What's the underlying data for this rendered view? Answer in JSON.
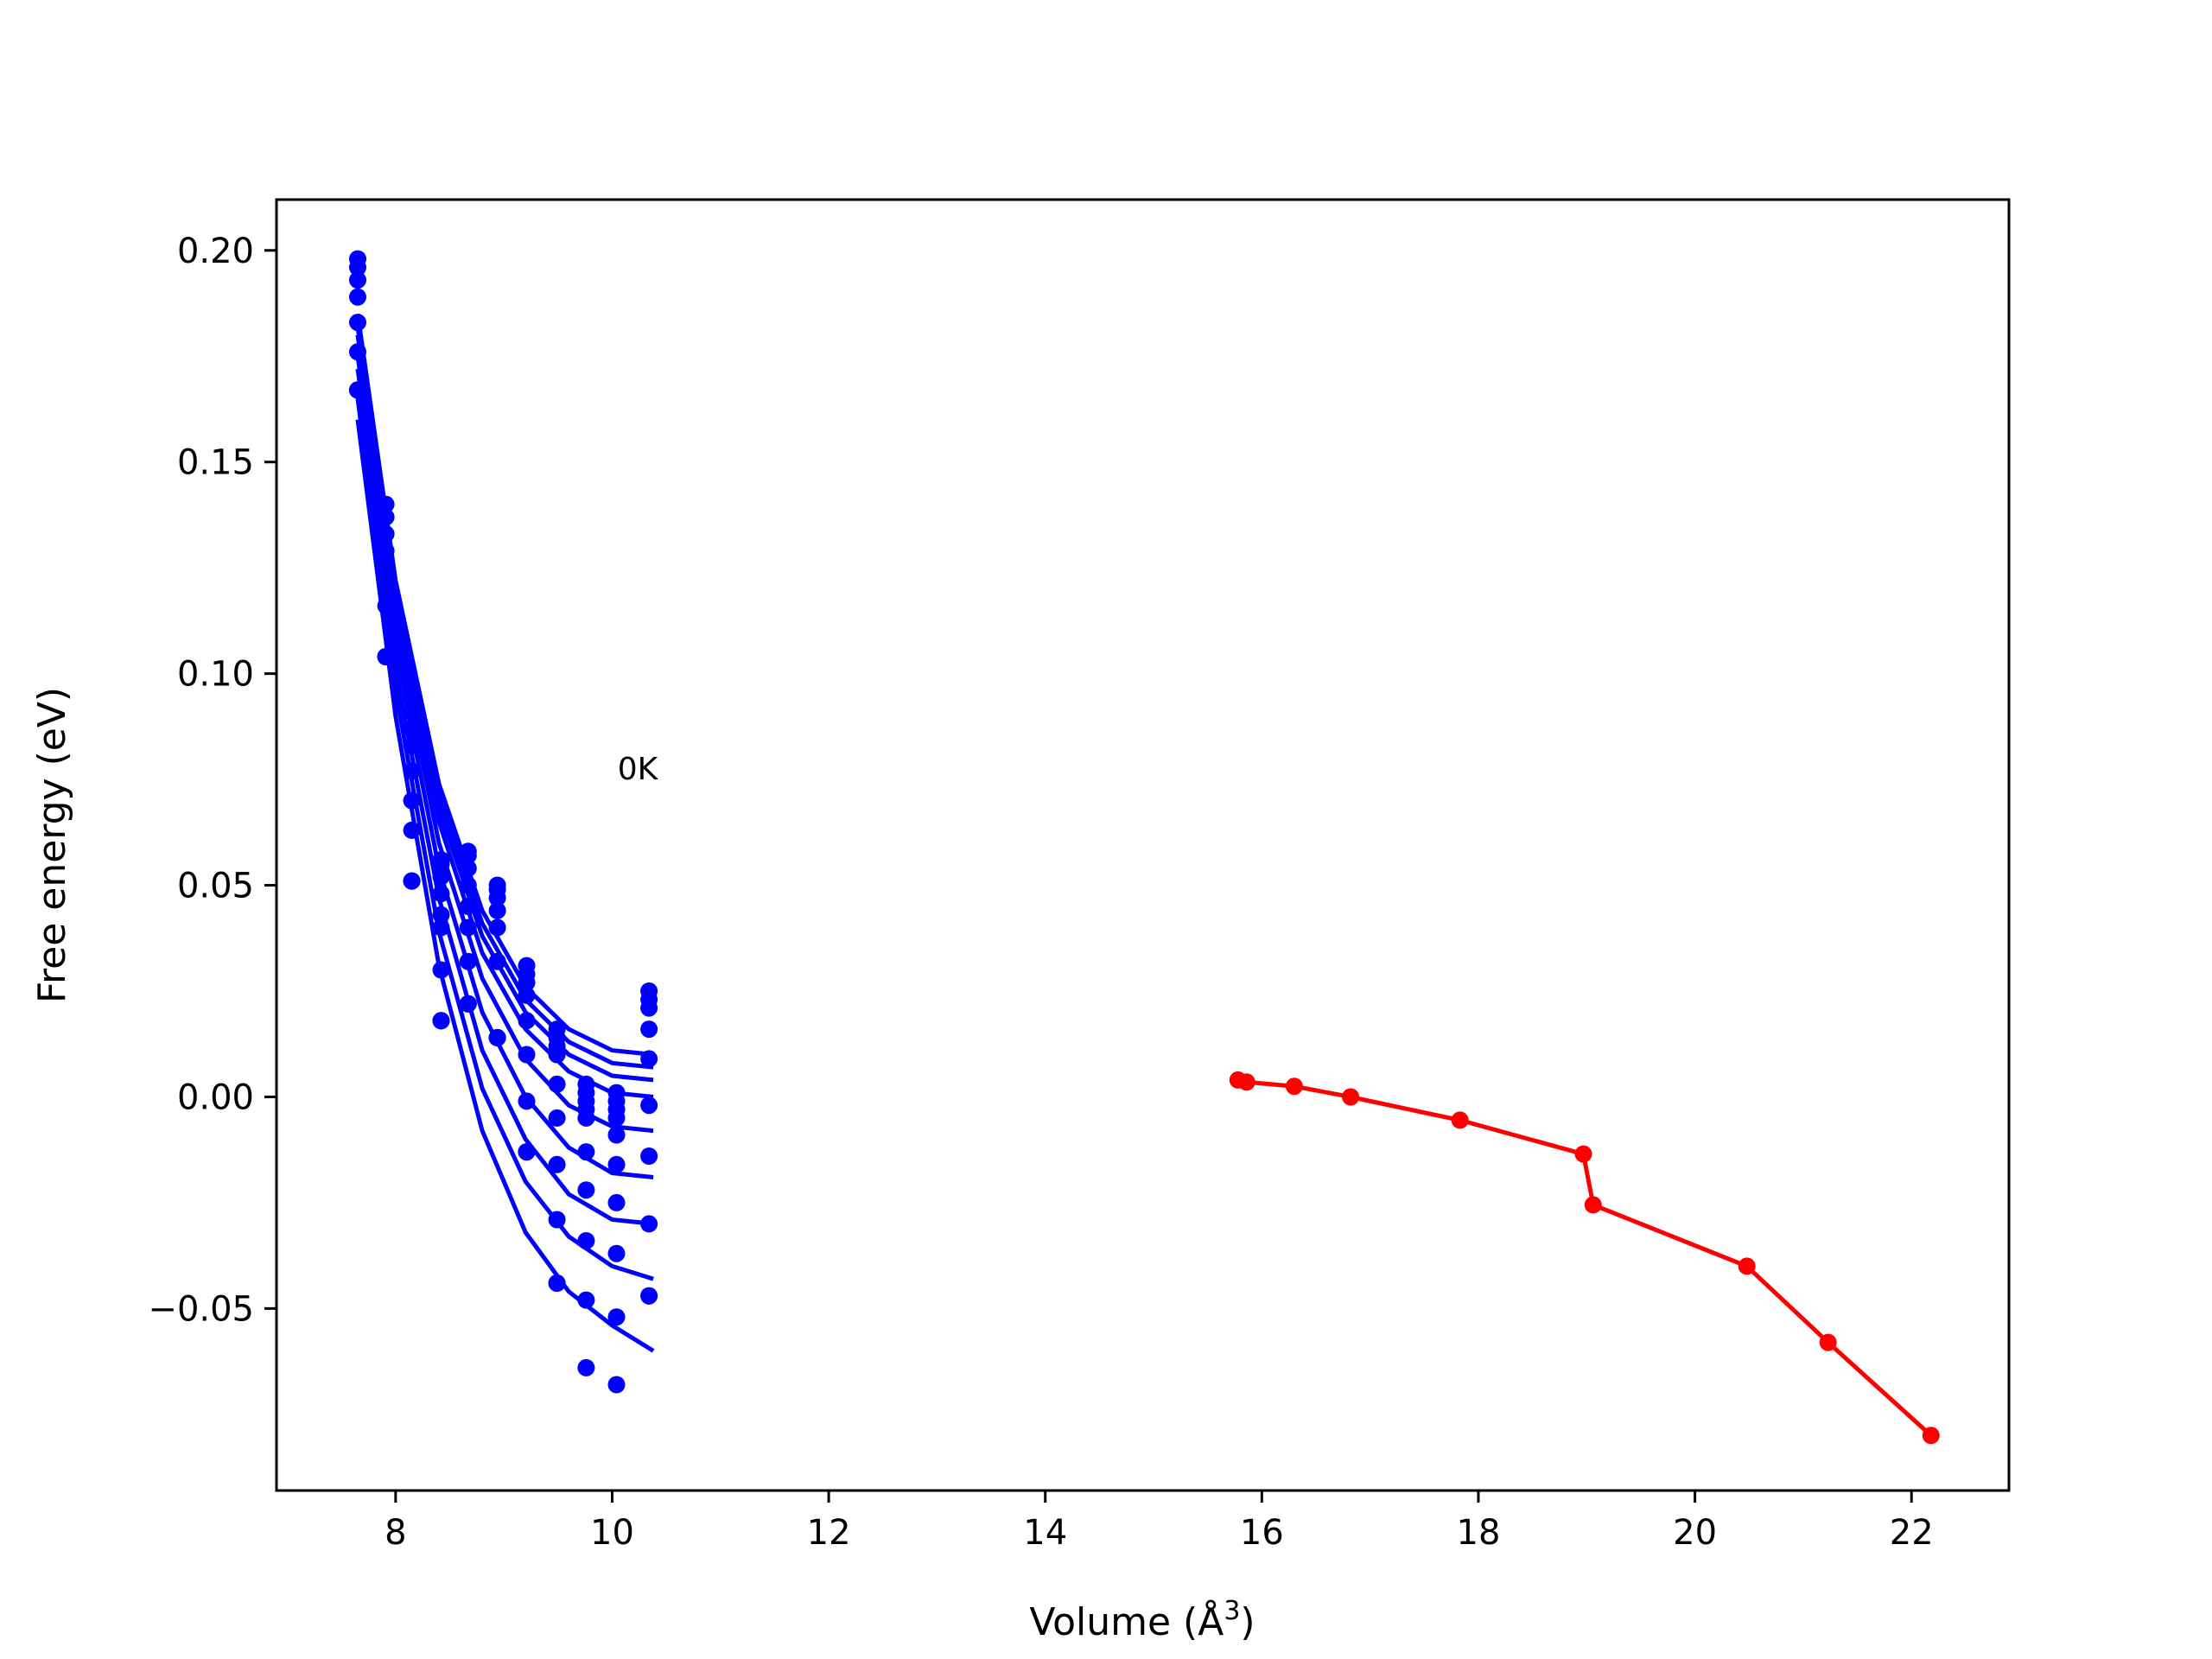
{
  "chart_data": {
    "type": "scatter",
    "title": "",
    "xlabel": "Volume (Å",
    "xlabel_sup": "3",
    "xlabel_close": ")",
    "ylabel": "Free energy (eV)",
    "xlim": [
      6.9,
      22.9
    ],
    "ylim": [
      -0.093,
      0.212
    ],
    "xticks": [
      8,
      10,
      12,
      14,
      16,
      18,
      20,
      22
    ],
    "yticks": [
      -0.05,
      0.0,
      0.05,
      0.1,
      0.15,
      0.2
    ],
    "ytick_labels": [
      "−0.05",
      "0.00",
      "0.05",
      "0.10",
      "0.15",
      "0.20"
    ],
    "grid": false,
    "annotation": {
      "text": "0K",
      "x": 10.05,
      "y": 0.075
    },
    "colors": {
      "blue": "#0000ff",
      "red": "#ff0000"
    },
    "scatter_x": [
      7.65,
      7.91,
      8.15,
      8.42,
      8.67,
      8.94,
      9.21,
      9.49,
      9.76,
      10.04,
      10.34
    ],
    "scatter_series": [
      [
        0.198,
        0.14,
        0.094,
        0.056,
        0.058,
        0.05,
        0.031,
        0.016,
        0.003,
        0.001,
        0.025
      ],
      [
        0.196,
        0.137,
        0.091,
        0.055,
        0.057,
        0.049,
        0.029,
        0.014,
        0.001,
        -0.001,
        0.023
      ],
      [
        0.193,
        0.133,
        0.087,
        0.052,
        0.054,
        0.047,
        0.027,
        0.012,
        -0.001,
        -0.003,
        0.021
      ],
      [
        0.189,
        0.129,
        0.083,
        0.048,
        0.05,
        0.044,
        0.024,
        0.01,
        -0.003,
        -0.005,
        0.016
      ],
      [
        0.183,
        0.123,
        0.077,
        0.043,
        0.045,
        0.04,
        0.018,
        0.003,
        -0.005,
        -0.009,
        0.009
      ],
      [
        0.176,
        0.116,
        0.07,
        0.04,
        0.04,
        0.032,
        0.01,
        -0.005,
        -0.013,
        -0.016,
        -0.002
      ],
      [
        0.167,
        0.104,
        0.063,
        0.03,
        0.032,
        0.014,
        -0.001,
        -0.016,
        -0.022,
        -0.025,
        -0.014
      ],
      [
        0.167,
        0.104,
        0.051,
        0.018,
        0.022,
        0.014,
        -0.013,
        -0.029,
        -0.034,
        -0.037,
        -0.03
      ],
      [
        0.167,
        0.104,
        0.051,
        0.018,
        0.022,
        0.014,
        -0.013,
        -0.044,
        -0.048,
        -0.052,
        -0.047
      ],
      [
        0.167,
        0.104,
        0.051,
        0.018,
        0.022,
        0.014,
        -0.013,
        -0.044,
        -0.064,
        -0.068,
        -0.047
      ]
    ],
    "fit_curves": [
      {
        "x": [
          7.65,
          8.0,
          8.4,
          8.8,
          9.2,
          9.6,
          10.0,
          10.38
        ],
        "y": [
          0.185,
          0.122,
          0.074,
          0.044,
          0.026,
          0.016,
          0.011,
          0.01
        ]
      },
      {
        "x": [
          7.65,
          8.0,
          8.4,
          8.8,
          9.2,
          9.6,
          10.0,
          10.38
        ],
        "y": [
          0.182,
          0.119,
          0.071,
          0.041,
          0.023,
          0.013,
          0.008,
          0.007
        ]
      },
      {
        "x": [
          7.65,
          8.0,
          8.4,
          8.8,
          9.2,
          9.6,
          10.0,
          10.38
        ],
        "y": [
          0.18,
          0.117,
          0.068,
          0.038,
          0.02,
          0.01,
          0.005,
          0.004
        ]
      },
      {
        "x": [
          7.65,
          8.0,
          8.4,
          8.8,
          9.2,
          9.6,
          10.0,
          10.38
        ],
        "y": [
          0.178,
          0.114,
          0.065,
          0.034,
          0.016,
          0.006,
          0.001,
          0.0
        ]
      },
      {
        "x": [
          7.65,
          8.0,
          8.4,
          8.8,
          9.2,
          9.6,
          10.0,
          10.38
        ],
        "y": [
          0.175,
          0.11,
          0.06,
          0.028,
          0.009,
          -0.002,
          -0.007,
          -0.008
        ]
      },
      {
        "x": [
          7.65,
          8.0,
          8.4,
          8.8,
          9.2,
          9.6,
          10.0,
          10.38
        ],
        "y": [
          0.172,
          0.106,
          0.054,
          0.02,
          0.0,
          -0.012,
          -0.018,
          -0.019
        ]
      },
      {
        "x": [
          7.65,
          8.0,
          8.4,
          8.8,
          9.2,
          9.6,
          10.0,
          10.38
        ],
        "y": [
          0.168,
          0.101,
          0.047,
          0.011,
          -0.01,
          -0.023,
          -0.029,
          -0.03
        ]
      },
      {
        "x": [
          7.65,
          8.0,
          8.4,
          8.8,
          9.2,
          9.6,
          10.0,
          10.38
        ],
        "y": [
          0.165,
          0.096,
          0.039,
          0.002,
          -0.02,
          -0.033,
          -0.04,
          -0.043
        ]
      },
      {
        "x": [
          7.65,
          8.0,
          8.4,
          8.8,
          9.2,
          9.6,
          10.0,
          10.38
        ],
        "y": [
          0.16,
          0.09,
          0.031,
          -0.008,
          -0.032,
          -0.046,
          -0.054,
          -0.06
        ]
      }
    ],
    "red_line": {
      "x": [
        15.78,
        15.86,
        16.3,
        16.82,
        17.83,
        18.97,
        19.06,
        20.48,
        21.23,
        22.18
      ],
      "y": [
        0.004,
        0.0035,
        0.0025,
        0.0,
        -0.0055,
        -0.0135,
        -0.0255,
        -0.04,
        -0.058,
        -0.08
      ]
    }
  }
}
